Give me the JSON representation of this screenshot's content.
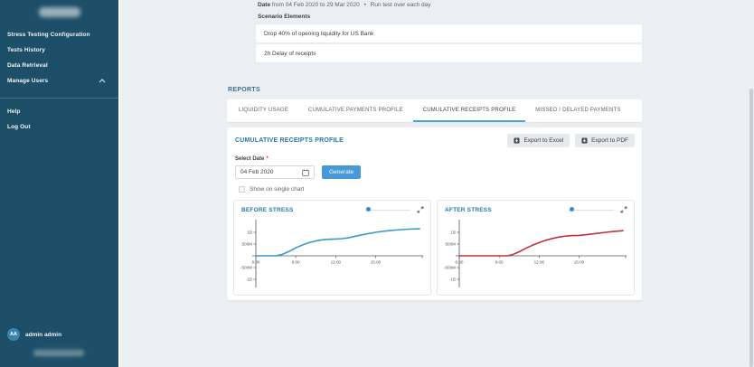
{
  "sidebar": {
    "items": [
      {
        "label": "Stress Testing Configuration"
      },
      {
        "label": "Tests History"
      },
      {
        "label": "Data Retrieval"
      },
      {
        "label": "Manage Users"
      }
    ],
    "secondary_items": [
      {
        "label": "Help"
      },
      {
        "label": "Log Out"
      }
    ],
    "user": {
      "initials": "AA",
      "name": "admin admin"
    }
  },
  "header": {
    "date_label": "Date",
    "date_range": "from 04 Feb 2020 to 29 Mar 2020",
    "separator": "•",
    "run_note": "Run test over each day"
  },
  "scenario": {
    "title": "Scenario Elements",
    "items": [
      {
        "text": "Drop 40% of opening liquidity for US Bank"
      },
      {
        "text": "2h Delay of receipts"
      }
    ]
  },
  "reports": {
    "title": "REPORTS",
    "tabs": [
      {
        "label": "LIQUIDITY USAGE",
        "active": false
      },
      {
        "label": "CUMULATIVE PAYMENTS PROFILE",
        "active": false
      },
      {
        "label": "CUMULATIVE RECEIPTS PROFILE",
        "active": true
      },
      {
        "label": "MISSED / DELAYED PAYMENTS",
        "active": false
      }
    ],
    "detail": {
      "title": "CUMULATIVE RECEIPTS PROFILE",
      "export_excel": "Export to Excel",
      "export_pdf": "Export to PDF",
      "select_date_label": "Select Date",
      "required_marker": "*",
      "date_value": "04 Feb 2020",
      "generate_label": "Generate",
      "checkbox_label": "Show on single chart",
      "checkbox_checked": false
    }
  },
  "colors": {
    "sidebar": "#1d5068",
    "accent_blue": "#4599d4",
    "active_tab_underline": "#4da6d9",
    "before_line": "#3d96cc",
    "after_line": "#c2303c"
  },
  "chart_data": [
    {
      "type": "line",
      "title": "BEFORE STRESS",
      "color": "#3d96cc",
      "legend": "none",
      "grid": false,
      "x_unit": "time of day",
      "y_unit": "millions",
      "x_range": [
        6,
        18.5
      ],
      "y_range": [
        -1500,
        1500
      ],
      "x_ticks": [
        {
          "value": 6,
          "label": "6:00"
        },
        {
          "value": 9,
          "label": "9:00"
        },
        {
          "value": 12,
          "label": "12:00"
        },
        {
          "value": 15,
          "label": "15:00"
        },
        {
          "value": 18.5,
          "label": ""
        }
      ],
      "y_ticks": [
        {
          "value": 1000,
          "label": "1B"
        },
        {
          "value": 500,
          "label": "500M"
        },
        {
          "value": -500,
          "label": "-500M"
        },
        {
          "value": -1000,
          "label": "-1B"
        }
      ],
      "points": [
        [
          6,
          0
        ],
        [
          7.5,
          0
        ],
        [
          8,
          60
        ],
        [
          8.5,
          190
        ],
        [
          9,
          340
        ],
        [
          9.5,
          460
        ],
        [
          10,
          560
        ],
        [
          10.5,
          630
        ],
        [
          11,
          680
        ],
        [
          11.5,
          705
        ],
        [
          12,
          715
        ],
        [
          12.5,
          730
        ],
        [
          13,
          775
        ],
        [
          13.5,
          835
        ],
        [
          14,
          895
        ],
        [
          14.5,
          950
        ],
        [
          15,
          1000
        ],
        [
          15.5,
          1040
        ],
        [
          16,
          1070
        ],
        [
          16.5,
          1095
        ],
        [
          17,
          1115
        ],
        [
          17.5,
          1135
        ],
        [
          18.3,
          1150
        ]
      ]
    },
    {
      "type": "line",
      "title": "AFTER STRESS",
      "color": "#c2303c",
      "legend": "none",
      "grid": false,
      "x_unit": "time of day",
      "y_unit": "millions",
      "x_range": [
        6,
        18.5
      ],
      "y_range": [
        -1500,
        1500
      ],
      "x_ticks": [
        {
          "value": 6,
          "label": "6:00"
        },
        {
          "value": 9,
          "label": "9:00"
        },
        {
          "value": 12,
          "label": "12:00"
        },
        {
          "value": 15,
          "label": "15:00"
        },
        {
          "value": 18.5,
          "label": ""
        }
      ],
      "y_ticks": [
        {
          "value": 1000,
          "label": "1B"
        },
        {
          "value": 500,
          "label": "500M"
        },
        {
          "value": -500,
          "label": "-500M"
        },
        {
          "value": -1000,
          "label": "-1B"
        }
      ],
      "points": [
        [
          6,
          0
        ],
        [
          9.6,
          0
        ],
        [
          10,
          50
        ],
        [
          10.5,
          170
        ],
        [
          11,
          320
        ],
        [
          11.5,
          450
        ],
        [
          12,
          560
        ],
        [
          12.5,
          660
        ],
        [
          13,
          740
        ],
        [
          13.5,
          800
        ],
        [
          14,
          840
        ],
        [
          14.5,
          860
        ],
        [
          15,
          870
        ],
        [
          15.5,
          895
        ],
        [
          16,
          930
        ],
        [
          16.5,
          965
        ],
        [
          17,
          1000
        ],
        [
          17.5,
          1030
        ],
        [
          18.3,
          1070
        ]
      ]
    }
  ]
}
